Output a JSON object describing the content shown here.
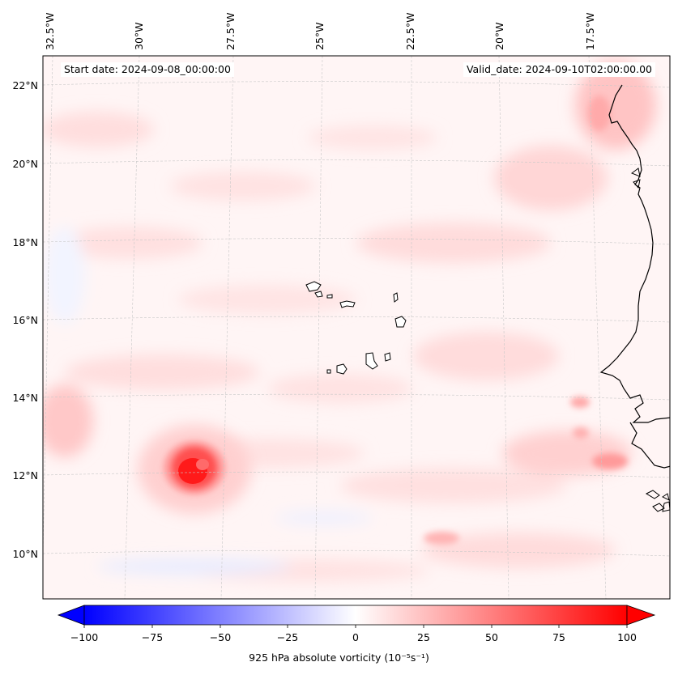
{
  "header": {
    "start_label": "Start date: 2024-09-08_00:00:00",
    "valid_label": "Valid_date: 2024-09-10T02:00:00.00"
  },
  "map": {
    "longitude_labels": [
      "32.5°W",
      "30°W",
      "27.5°W",
      "25°W",
      "22.5°W",
      "20°W",
      "17.5°W"
    ],
    "latitude_labels": [
      "22°N",
      "20°N",
      "18°N",
      "16°N",
      "14°N",
      "12°N",
      "10°N"
    ],
    "features": [
      {
        "name": "vorticity-maximum",
        "lon": -28.2,
        "lat": 12.0,
        "value": 100
      },
      {
        "name": "cabo-verde-islands",
        "lon": -23.8,
        "lat": 15.8
      }
    ],
    "colors": {
      "positive": "#ff0000",
      "negative": "#0000ff",
      "coastline": "#000000",
      "grid": "#cccccc"
    }
  },
  "colorbar": {
    "min": -100,
    "max": 100,
    "tick_labels": [
      "−100",
      "−75",
      "−50",
      "−25",
      "0",
      "25",
      "50",
      "75",
      "100"
    ],
    "label": "925 hPa absolute vorticity (10⁻⁵s⁻¹)"
  }
}
